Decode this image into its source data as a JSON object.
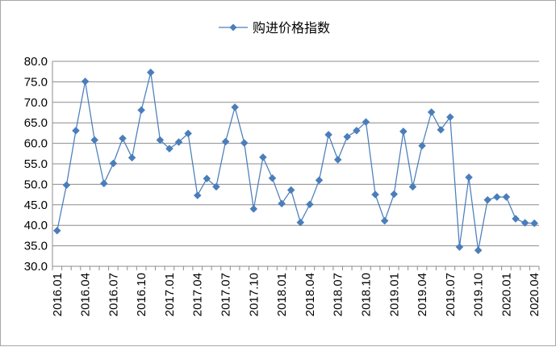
{
  "chart_data": {
    "type": "line",
    "legend": {
      "label": "购进价格指数",
      "position": "top"
    },
    "series": [
      {
        "name": "购进价格指数",
        "color": "#4a7ebb",
        "marker": "diamond",
        "values": [
          38.7,
          49.8,
          63.1,
          75.1,
          60.8,
          50.2,
          55.1,
          61.2,
          56.5,
          68.1,
          77.3,
          60.8,
          58.7,
          60.3,
          62.4,
          47.3,
          51.4,
          49.4,
          60.4,
          68.8,
          60.1,
          44.0,
          56.6,
          51.5,
          45.3,
          48.6,
          40.7,
          45.1,
          51.0,
          62.1,
          56.0,
          61.6,
          63.1,
          65.2,
          47.5,
          41.1,
          47.6,
          62.9,
          49.4,
          59.4,
          67.6,
          63.3,
          66.4,
          34.7,
          51.7,
          33.9,
          46.2,
          46.9,
          46.9,
          41.6,
          40.6,
          40.5
        ]
      }
    ],
    "x_tick_labels": [
      "2016.01",
      "2016.04",
      "2016.07",
      "2016.10",
      "2017.01",
      "2017.04",
      "2017.07",
      "2017.10",
      "2018.01",
      "2018.04",
      "2018.07",
      "2018.10",
      "2019.01",
      "2019.04",
      "2019.07",
      "2019.10",
      "2020.01",
      "2020.04"
    ],
    "x_tick_every": 3,
    "y_tick_labels": [
      "30.0",
      "35.0",
      "40.0",
      "45.0",
      "50.0",
      "55.0",
      "60.0",
      "65.0",
      "70.0",
      "75.0",
      "80.0"
    ],
    "ylim": [
      30,
      80
    ],
    "y_step": 5,
    "grid": {
      "y": true,
      "x": false
    },
    "title": "",
    "xlabel": "",
    "ylabel": ""
  }
}
